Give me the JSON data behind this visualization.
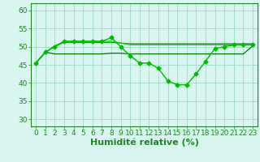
{
  "xlabel": "Humidité relative (%)",
  "bg_color": "#d8f5f0",
  "grid_color": "#aaddcc",
  "ylim": [
    28,
    62
  ],
  "xlim": [
    -0.5,
    23.5
  ],
  "yticks": [
    30,
    35,
    40,
    45,
    50,
    55,
    60
  ],
  "xticks": [
    0,
    1,
    2,
    3,
    4,
    5,
    6,
    7,
    8,
    9,
    10,
    11,
    12,
    13,
    14,
    15,
    16,
    17,
    18,
    19,
    20,
    21,
    22,
    23
  ],
  "line_main": {
    "x": [
      0,
      1,
      2,
      3,
      4,
      5,
      6,
      7,
      8,
      9,
      10,
      11,
      12,
      13,
      14,
      15,
      16,
      17,
      18,
      19,
      20,
      21,
      22,
      23
    ],
    "y": [
      45.5,
      48.5,
      50.0,
      51.5,
      51.5,
      51.5,
      51.5,
      51.5,
      52.5,
      50.0,
      47.5,
      45.5,
      45.5,
      44.0,
      40.5,
      39.5,
      39.5,
      42.5,
      46.0,
      49.5,
      50.0,
      50.5,
      50.5,
      50.5
    ],
    "color": "#00bb00",
    "marker": "D",
    "markersize": 2.5,
    "linewidth": 1.0
  },
  "line_flat1": {
    "x": [
      0,
      1,
      2,
      3,
      4,
      5,
      6,
      7,
      8,
      9,
      10,
      11,
      12,
      13,
      14,
      15,
      16,
      17,
      18,
      19,
      20,
      21,
      22,
      23
    ],
    "y": [
      45.5,
      48.5,
      50.2,
      51.2,
      51.2,
      51.2,
      51.2,
      51.2,
      51.2,
      51.0,
      50.8,
      50.8,
      50.8,
      50.8,
      50.8,
      50.8,
      50.8,
      50.8,
      50.8,
      50.8,
      50.8,
      50.8,
      50.8,
      50.8
    ],
    "color": "#009900",
    "linewidth": 0.9
  },
  "line_flat2": {
    "x": [
      0,
      1,
      2,
      3,
      4,
      5,
      6,
      7,
      8,
      9,
      10,
      11,
      12,
      13,
      14,
      15,
      16,
      17,
      18,
      19,
      20,
      21,
      22,
      23
    ],
    "y": [
      45.5,
      48.5,
      48.0,
      48.0,
      48.0,
      48.0,
      48.0,
      48.0,
      48.2,
      48.2,
      48.0,
      48.0,
      48.0,
      48.0,
      48.0,
      48.0,
      48.0,
      48.0,
      48.0,
      48.0,
      48.0,
      48.0,
      48.0,
      50.2
    ],
    "color": "#007700",
    "linewidth": 0.9
  },
  "line_flat3": {
    "x": [
      0,
      1,
      2,
      3,
      4,
      5,
      6,
      7,
      8,
      9,
      10,
      11,
      12,
      13,
      14,
      15,
      16,
      17,
      18,
      19,
      20,
      21,
      22,
      23
    ],
    "y": [
      45.5,
      48.5,
      50.2,
      51.5,
      51.5,
      51.5,
      51.5,
      51.5,
      51.5,
      51.0,
      50.5,
      50.5,
      50.5,
      50.5,
      50.5,
      50.5,
      50.5,
      50.5,
      50.5,
      50.5,
      50.5,
      50.5,
      50.5,
      50.5
    ],
    "color": "#00dd00",
    "linewidth": 0.8
  },
  "axis_color": "#228822",
  "tick_color": "#228822",
  "label_color": "#228822",
  "tick_fontsize": 6.5,
  "xlabel_fontsize": 8
}
